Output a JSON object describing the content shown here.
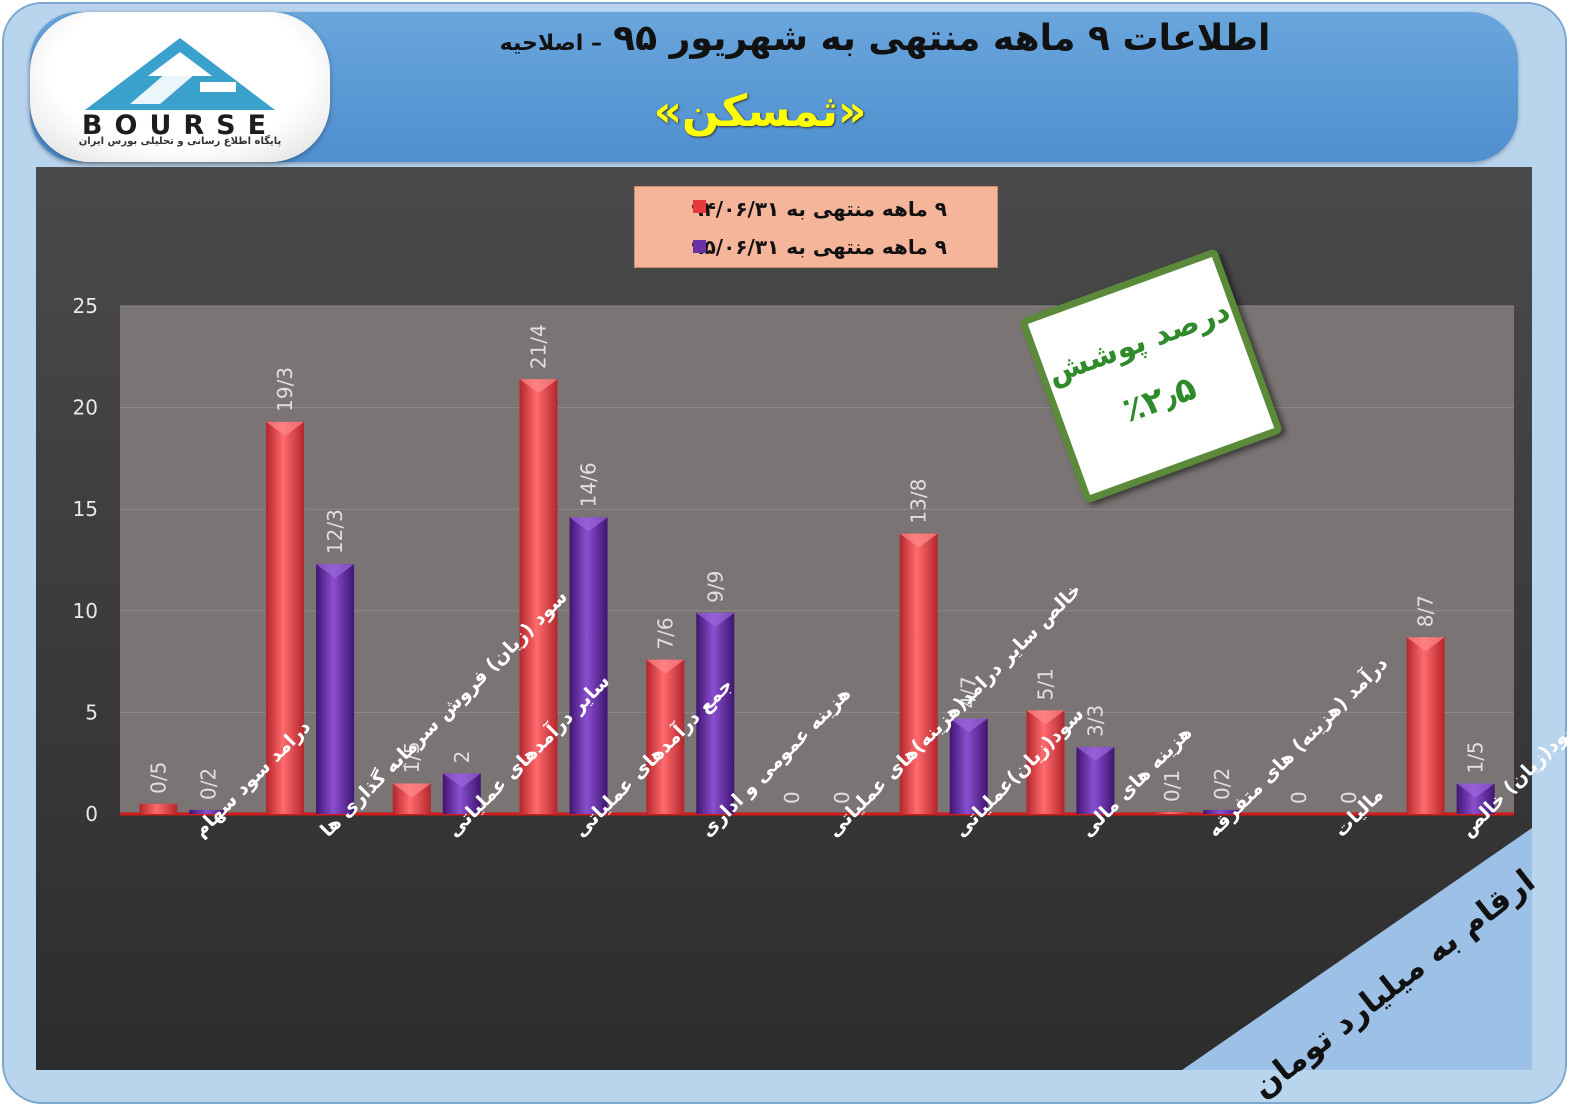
{
  "header": {
    "title_main": "اطلاعات ۹ ماهه منتهی به شهریور ۹۵",
    "title_suffix": "– اصلاحیه",
    "company": "«ثمسکن»"
  },
  "logo": {
    "word": "BOURSE",
    "tagline": "پایگاه اطلاع رسانی و تحلیلی بورس ایران"
  },
  "coverage": {
    "line1": "درصد پوشش",
    "line2": "٪۲٫۵"
  },
  "note": "ارقام به میلیارد تومان",
  "colors": {
    "series1": "#e63a3f",
    "series2": "#6b2fa6",
    "plot_bg": "#7a7474",
    "accent_green": "#5b8a3a",
    "banner": "#9cc0e6"
  },
  "chart_data": {
    "type": "bar",
    "categories": [
      "درامد سود سهام",
      "سود (زیان) فروش سرمایه گذاری ها",
      "سایر درآمدهای عملیاتی",
      "جمع درآمدهای عملیاتی",
      "هزینه عمومی و اداری",
      "خالص سایر درامد(هزینه)های عملیاتی",
      "سود(زیان)عملیاتی",
      "هزینه های مالی",
      "درآمد (هزینه) های متفرقه",
      "مالیات",
      "سود(زیان) خالص"
    ],
    "series": [
      {
        "name": "۹ ماهه منتهی به ۹۴/۰۶/۳۱",
        "values": [
          0.5,
          19.3,
          1.5,
          21.4,
          7.6,
          0,
          13.8,
          5.1,
          0.1,
          0,
          8.7
        ],
        "labels": [
          "0/5",
          "19/3",
          "1/5",
          "21/4",
          "7/6",
          "0",
          "13/8",
          "5/1",
          "0/1",
          "0",
          "8/7"
        ]
      },
      {
        "name": "۹ ماهه منتهی به ۹۵/۰۶/۳۱",
        "values": [
          0.2,
          12.3,
          2,
          14.6,
          9.9,
          0,
          4.7,
          3.3,
          0.2,
          0,
          1.5
        ],
        "labels": [
          "0/2",
          "12/3",
          "2",
          "14/6",
          "9/9",
          "0",
          "4/7",
          "3/3",
          "0/2",
          "0",
          "1/5"
        ]
      }
    ],
    "ylim": [
      0,
      25
    ],
    "yticks": [
      "0",
      "5",
      "10",
      "15",
      "20",
      "25"
    ],
    "grid": true,
    "legend": "top-center"
  }
}
